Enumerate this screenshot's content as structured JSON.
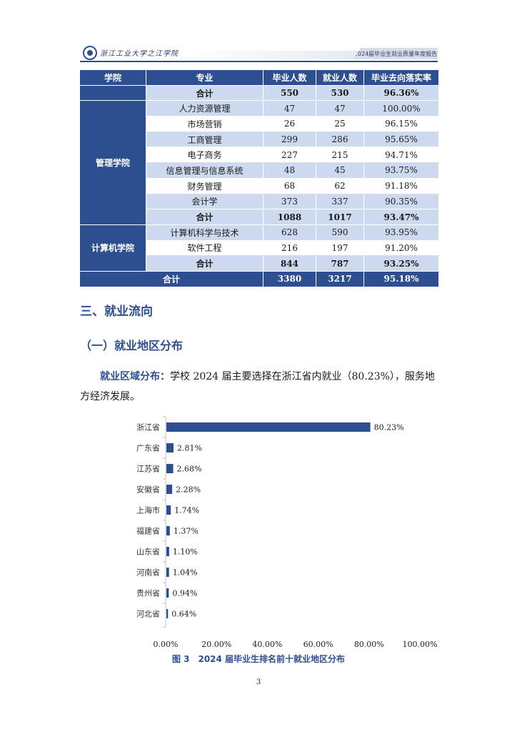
{
  "header": {
    "school_name": "浙江工业大学之江学院",
    "report_title": "2024届毕业生就业质量年度报告"
  },
  "table": {
    "columns": [
      "学院",
      "专业",
      "毕业人数",
      "就业人数",
      "毕业去向落实率"
    ],
    "rows": [
      {
        "college": "",
        "major": "合计",
        "grads": "550",
        "employed": "530",
        "rate": "96.36%"
      },
      {
        "college": "管理学院",
        "major": "人力资源管理",
        "grads": "47",
        "employed": "47",
        "rate": "100.00%"
      },
      {
        "college": "",
        "major": "市场营销",
        "grads": "26",
        "employed": "25",
        "rate": "96.15%"
      },
      {
        "college": "",
        "major": "工商管理",
        "grads": "299",
        "employed": "286",
        "rate": "95.65%"
      },
      {
        "college": "",
        "major": "电子商务",
        "grads": "227",
        "employed": "215",
        "rate": "94.71%"
      },
      {
        "college": "",
        "major": "信息管理与信息系统",
        "grads": "48",
        "employed": "45",
        "rate": "93.75%"
      },
      {
        "college": "",
        "major": "财务管理",
        "grads": "68",
        "employed": "62",
        "rate": "91.18%"
      },
      {
        "college": "",
        "major": "会计学",
        "grads": "373",
        "employed": "337",
        "rate": "90.35%"
      },
      {
        "college": "",
        "major": "合计",
        "grads": "1088",
        "employed": "1017",
        "rate": "93.47%"
      },
      {
        "college": "计算机学院",
        "major": "计算机科学与技术",
        "grads": "628",
        "employed": "590",
        "rate": "93.95%"
      },
      {
        "college": "",
        "major": "软件工程",
        "grads": "216",
        "employed": "197",
        "rate": "91.20%"
      },
      {
        "college": "",
        "major": "合计",
        "grads": "844",
        "employed": "787",
        "rate": "93.25%"
      }
    ],
    "grand_total": {
      "label": "合计",
      "grads": "3380",
      "employed": "3217",
      "rate": "95.18%"
    }
  },
  "section": {
    "heading": "三、就业流向",
    "subheading": "（一）就业地区分布",
    "lead": "就业区域分布：",
    "body": "学校 2024 届主要选择在浙江省内就业（80.23%），服务地方经济发展。"
  },
  "chart_data": {
    "type": "bar",
    "orientation": "horizontal",
    "categories": [
      "浙江省",
      "广东省",
      "江苏省",
      "安徽省",
      "上海市",
      "福建省",
      "山东省",
      "河南省",
      "贵州省",
      "河北省"
    ],
    "values": [
      80.23,
      2.81,
      2.68,
      2.28,
      1.74,
      1.37,
      1.1,
      1.04,
      0.94,
      0.64
    ],
    "data_labels": [
      "80.23%",
      "2.81%",
      "2.68%",
      "2.28%",
      "1.74%",
      "1.37%",
      "1.10%",
      "1.04%",
      "0.94%",
      "0.64%"
    ],
    "xlim": [
      0,
      100
    ],
    "xticks": [
      "0.00%",
      "20.00%",
      "40.00%",
      "60.00%",
      "80.00%",
      "100.00%"
    ],
    "grid": false,
    "color": "#2e4f8f",
    "title": "",
    "xlabel": "",
    "ylabel": ""
  },
  "caption": "图 3　2024 届毕业生排名前十就业地区分布",
  "page_number": "3"
}
